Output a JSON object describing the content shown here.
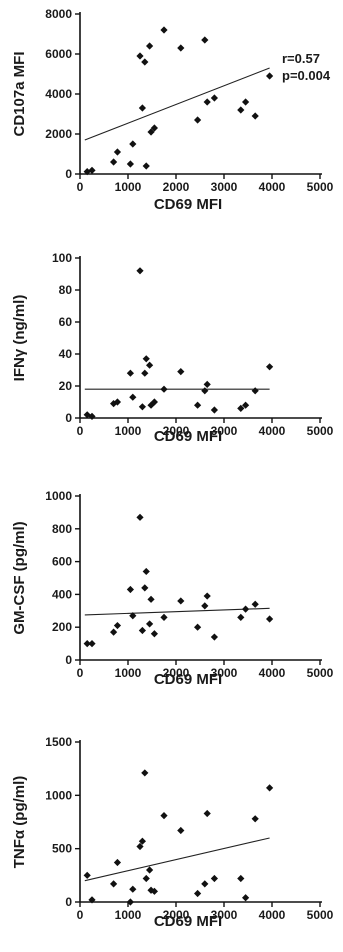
{
  "chart_data": [
    {
      "type": "scatter",
      "xlabel": "CD69 MFI",
      "ylabel": "CD107a MFI",
      "xlim": [
        0,
        5000
      ],
      "ylim": [
        0,
        8000
      ],
      "xticks": [
        0,
        1000,
        2000,
        3000,
        4000,
        5000
      ],
      "yticks": [
        0,
        2000,
        4000,
        6000,
        8000
      ],
      "annotations": [
        "r=0.57",
        "p=0.004"
      ],
      "points": [
        [
          150,
          120
        ],
        [
          250,
          180
        ],
        [
          700,
          600
        ],
        [
          780,
          1100
        ],
        [
          1050,
          500
        ],
        [
          1100,
          1500
        ],
        [
          1250,
          5900
        ],
        [
          1300,
          3300
        ],
        [
          1350,
          5600
        ],
        [
          1380,
          400
        ],
        [
          1450,
          6400
        ],
        [
          1480,
          2100
        ],
        [
          1550,
          2300
        ],
        [
          1750,
          7200
        ],
        [
          2100,
          6300
        ],
        [
          2450,
          2700
        ],
        [
          2600,
          6700
        ],
        [
          2650,
          3600
        ],
        [
          2800,
          3800
        ],
        [
          3350,
          3200
        ],
        [
          3450,
          3600
        ],
        [
          3650,
          2900
        ],
        [
          3950,
          4900
        ]
      ],
      "trendline": [
        [
          100,
          1700
        ],
        [
          3950,
          5300
        ]
      ]
    },
    {
      "type": "scatter",
      "xlabel": "CD69 MFI",
      "ylabel": "IFNγ (ng/ml)",
      "xlim": [
        0,
        5000
      ],
      "ylim": [
        0,
        100
      ],
      "xticks": [
        0,
        1000,
        2000,
        3000,
        4000,
        5000
      ],
      "yticks": [
        0,
        20,
        40,
        60,
        80,
        100
      ],
      "points": [
        [
          150,
          2
        ],
        [
          250,
          1
        ],
        [
          700,
          9
        ],
        [
          780,
          10
        ],
        [
          1050,
          28
        ],
        [
          1100,
          13
        ],
        [
          1250,
          92
        ],
        [
          1300,
          7
        ],
        [
          1350,
          28
        ],
        [
          1380,
          37
        ],
        [
          1450,
          33
        ],
        [
          1480,
          8
        ],
        [
          1550,
          10
        ],
        [
          1750,
          18
        ],
        [
          2100,
          29
        ],
        [
          2450,
          8
        ],
        [
          2600,
          17
        ],
        [
          2650,
          21
        ],
        [
          2800,
          5
        ],
        [
          3350,
          6
        ],
        [
          3450,
          8
        ],
        [
          3650,
          17
        ],
        [
          3950,
          32
        ]
      ],
      "trendline": [
        [
          100,
          18
        ],
        [
          3950,
          18
        ]
      ]
    },
    {
      "type": "scatter",
      "xlabel": "CD69 MFI",
      "ylabel": "GM-CSF (pg/ml)",
      "xlim": [
        0,
        5000
      ],
      "ylim": [
        0,
        1000
      ],
      "xticks": [
        0,
        1000,
        2000,
        3000,
        4000,
        5000
      ],
      "yticks": [
        0,
        200,
        400,
        600,
        800,
        1000
      ],
      "points": [
        [
          150,
          100
        ],
        [
          250,
          100
        ],
        [
          700,
          170
        ],
        [
          780,
          210
        ],
        [
          1050,
          430
        ],
        [
          1100,
          270
        ],
        [
          1250,
          870
        ],
        [
          1300,
          180
        ],
        [
          1350,
          440
        ],
        [
          1380,
          540
        ],
        [
          1450,
          220
        ],
        [
          1480,
          370
        ],
        [
          1550,
          160
        ],
        [
          1750,
          260
        ],
        [
          2100,
          360
        ],
        [
          2450,
          200
        ],
        [
          2600,
          330
        ],
        [
          2650,
          390
        ],
        [
          2800,
          140
        ],
        [
          3350,
          260
        ],
        [
          3450,
          310
        ],
        [
          3650,
          340
        ],
        [
          3950,
          250
        ]
      ],
      "trendline": [
        [
          100,
          275
        ],
        [
          3950,
          315
        ]
      ]
    },
    {
      "type": "scatter",
      "xlabel": "CD69 MFI",
      "ylabel": "TNFα (pg/ml)",
      "xlim": [
        0,
        5000
      ],
      "ylim": [
        0,
        1500
      ],
      "xticks": [
        0,
        1000,
        2000,
        3000,
        4000,
        5000
      ],
      "yticks": [
        0,
        500,
        1000,
        1500
      ],
      "points": [
        [
          150,
          250
        ],
        [
          250,
          20
        ],
        [
          700,
          170
        ],
        [
          780,
          370
        ],
        [
          1050,
          0
        ],
        [
          1100,
          120
        ],
        [
          1250,
          520
        ],
        [
          1300,
          570
        ],
        [
          1350,
          1210
        ],
        [
          1380,
          220
        ],
        [
          1450,
          300
        ],
        [
          1480,
          110
        ],
        [
          1550,
          100
        ],
        [
          1750,
          810
        ],
        [
          2100,
          670
        ],
        [
          2450,
          80
        ],
        [
          2600,
          170
        ],
        [
          2650,
          830
        ],
        [
          2800,
          220
        ],
        [
          3350,
          220
        ],
        [
          3450,
          40
        ],
        [
          3650,
          780
        ],
        [
          3950,
          1070
        ]
      ],
      "trendline": [
        [
          100,
          200
        ],
        [
          3950,
          600
        ]
      ]
    }
  ]
}
